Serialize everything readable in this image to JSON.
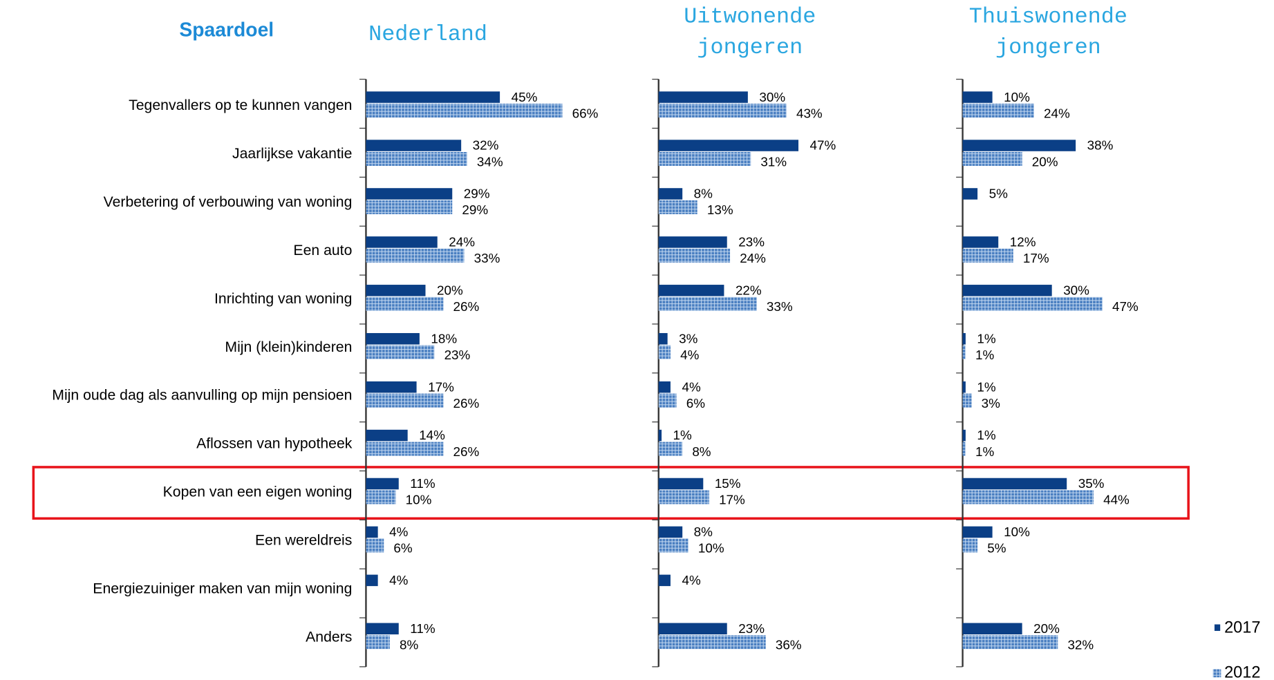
{
  "chart_data": {
    "type": "bar",
    "orientation": "horizontal",
    "title": "Spaardoel",
    "categories": [
      "Tegenvallers op te kunnen vangen",
      "Jaarlijkse vakantie",
      "Verbetering of verbouwing van woning",
      "Een auto",
      "Inrichting van woning",
      "Mijn (klein)kinderen",
      "Mijn oude dag als aanvulling op mijn pensioen",
      "Aflossen van hypotheek",
      "Kopen van een eigen woning",
      "Een wereldreis",
      "Energiezuiniger maken van mijn woning",
      "Anders"
    ],
    "xlim": [
      0,
      100
    ],
    "series": [
      {
        "name": "2017",
        "color": "#0b3f86"
      },
      {
        "name": "2012",
        "color": "#4a7fc1"
      }
    ],
    "panels": [
      {
        "title": [
          "Nederland"
        ],
        "values": [
          [
            45,
            32,
            29,
            24,
            20,
            18,
            17,
            14,
            11,
            4,
            4,
            11
          ],
          [
            66,
            34,
            29,
            33,
            26,
            23,
            26,
            26,
            10,
            6,
            null,
            8
          ]
        ],
        "value_labels": [
          [
            "45%",
            "32%",
            "29%",
            "24%",
            "20%",
            "18%",
            "17%",
            "14%",
            "11%",
            "4%",
            "4%",
            "11%"
          ],
          [
            "66%",
            "34%",
            "29%",
            "33%",
            "26%",
            "23%",
            "26%",
            "26%",
            "10%",
            "6%",
            null,
            "8%"
          ]
        ]
      },
      {
        "title": [
          "Uitwonende",
          "jongeren"
        ],
        "values": [
          [
            30,
            47,
            8,
            23,
            22,
            3,
            4,
            1,
            15,
            8,
            4,
            23
          ],
          [
            43,
            31,
            13,
            24,
            33,
            4,
            6,
            8,
            17,
            10,
            null,
            36
          ]
        ],
        "value_labels": [
          [
            "30%",
            "47%",
            "8%",
            "23%",
            "22%",
            "3%",
            "4%",
            "1%",
            "15%",
            "8%",
            "4%",
            "23%"
          ],
          [
            "43%",
            "31%",
            "13%",
            "24%",
            "33%",
            "4%",
            "6%",
            "8%",
            "17%",
            "10%",
            null,
            "36%"
          ]
        ]
      },
      {
        "title": [
          "Thuiswonende",
          "jongeren"
        ],
        "values": [
          [
            10,
            38,
            5,
            12,
            30,
            1,
            1,
            1,
            35,
            10,
            null,
            20
          ],
          [
            24,
            20,
            null,
            17,
            47,
            1,
            3,
            1,
            44,
            5,
            null,
            32
          ]
        ],
        "value_labels": [
          [
            "10%",
            "38%",
            "5%",
            "12%",
            "30%",
            "1%",
            "1%",
            "1%",
            "35%",
            "10%",
            null,
            "20%"
          ],
          [
            "24%",
            "20%",
            null,
            "17%",
            "47%",
            "1%",
            "3%",
            "1%",
            "44%",
            "5%",
            null,
            "32%"
          ]
        ]
      }
    ]
  }
}
